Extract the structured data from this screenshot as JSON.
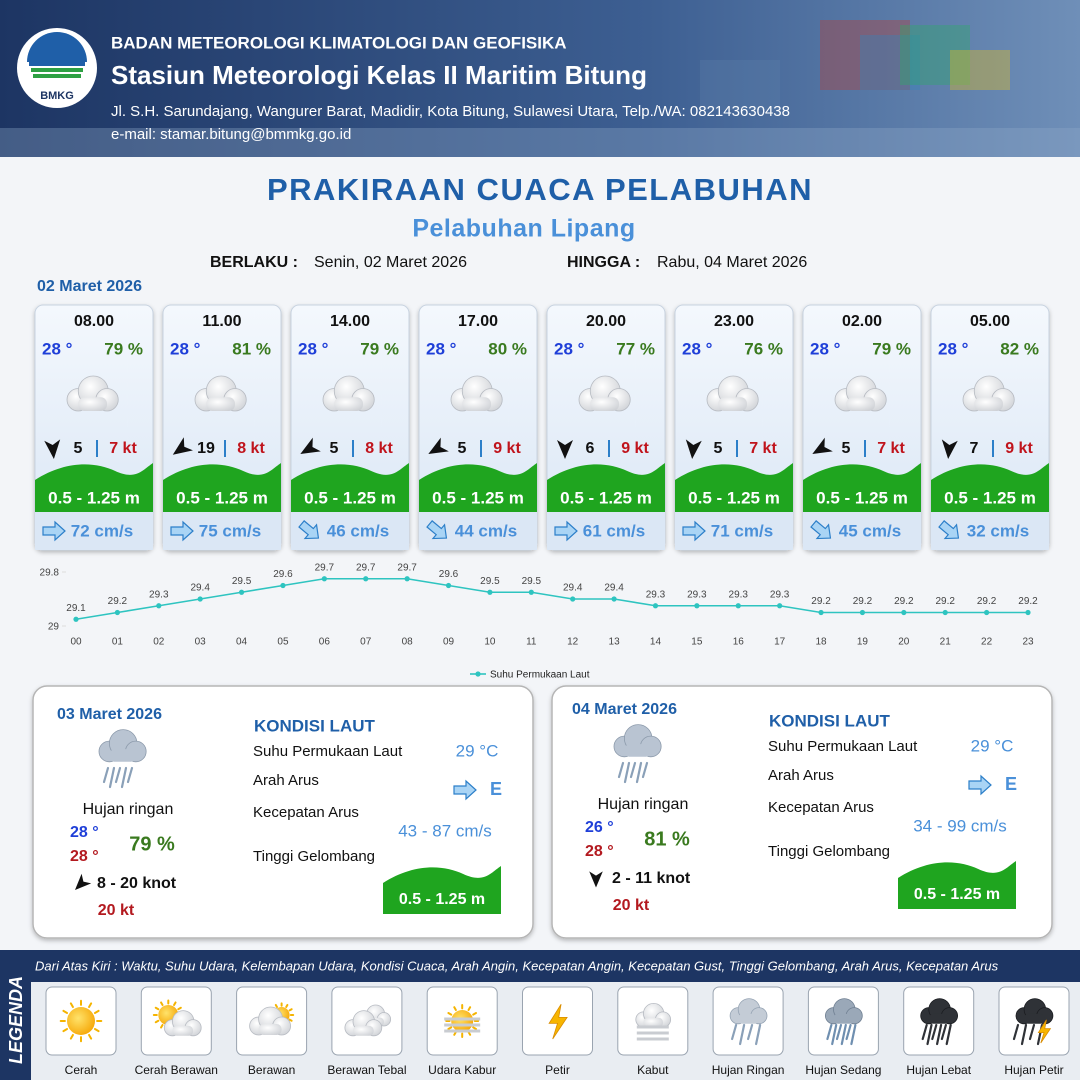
{
  "header": {
    "logo": "BMKG",
    "agency": "BADAN METEOROLOGI KLIMATOLOGI DAN GEOFISIKA",
    "station": "Stasiun Meteorologi Kelas II Maritim Bitung",
    "address": "Jl. S.H. Sarundajang, Wangurer Barat, Madidir, Kota Bitung, Sulawesi Utara, Telp./WA: 082143630438",
    "email": "e-mail: stamar.bitung@bmmkg.go.id"
  },
  "title": "PRAKIRAAN CUACA PELABUHAN",
  "subtitle": "Pelabuhan Lipang",
  "validity": {
    "from_label": "BERLAKU :",
    "from": "Senin, 02 Maret 2026",
    "until_label": "HINGGA :",
    "until": "Rabu, 04 Maret 2026"
  },
  "day1": {
    "date": "02 Maret 2026",
    "cards": [
      {
        "time": "08.00",
        "temp": "28 °",
        "humidity": "79 %",
        "wind": "5",
        "gust": "7 kt",
        "wave": "0.5 - 1.25 m",
        "current": "72 cm/s"
      },
      {
        "time": "11.00",
        "temp": "28 °",
        "humidity": "81 %",
        "wind": "19",
        "gust": "8 kt",
        "wave": "0.5 - 1.25 m",
        "current": "75 cm/s"
      },
      {
        "time": "14.00",
        "temp": "28 °",
        "humidity": "79 %",
        "wind": "5",
        "gust": "8 kt",
        "wave": "0.5 - 1.25 m",
        "current": "46 cm/s"
      },
      {
        "time": "17.00",
        "temp": "28 °",
        "humidity": "80 %",
        "wind": "5",
        "gust": "9 kt",
        "wave": "0.5 - 1.25 m",
        "current": "44 cm/s"
      },
      {
        "time": "20.00",
        "temp": "28 °",
        "humidity": "77 %",
        "wind": "6",
        "gust": "9 kt",
        "wave": "0.5 - 1.25 m",
        "current": "61 cm/s"
      },
      {
        "time": "23.00",
        "temp": "28 °",
        "humidity": "76 %",
        "wind": "5",
        "gust": "7 kt",
        "wave": "0.5 - 1.25 m",
        "current": "71 cm/s"
      },
      {
        "time": "02.00",
        "temp": "28 °",
        "humidity": "79 %",
        "wind": "5",
        "gust": "7 kt",
        "wave": "0.5 - 1.25 m",
        "current": "45 cm/s"
      },
      {
        "time": "05.00",
        "temp": "28 °",
        "humidity": "82 %",
        "wind": "7",
        "gust": "9 kt",
        "wave": "0.5 - 1.25 m",
        "current": "32 cm/s"
      }
    ]
  },
  "chart_data": {
    "type": "line",
    "categories": [
      "00",
      "01",
      "02",
      "03",
      "04",
      "05",
      "06",
      "07",
      "08",
      "09",
      "10",
      "11",
      "12",
      "13",
      "14",
      "15",
      "16",
      "17",
      "18",
      "19",
      "20",
      "21",
      "22",
      "23"
    ],
    "series": [
      {
        "name": "Suhu Permukaan Laut",
        "color": "#2ec4c0",
        "values": [
          29.1,
          29.2,
          29.3,
          29.4,
          29.5,
          29.6,
          29.7,
          29.7,
          29.7,
          29.6,
          29.5,
          29.5,
          29.4,
          29.4,
          29.3,
          29.3,
          29.3,
          29.3,
          29.2,
          29.2,
          29.2,
          29.2,
          29.2,
          29.2
        ]
      }
    ],
    "ylim": [
      29,
      29.8
    ],
    "yticks": [
      29,
      29.8
    ],
    "grid": false,
    "legend": "bottom"
  },
  "days": [
    {
      "date": "03 Maret 2026",
      "condition": "Hujan ringan",
      "temp_min": "28 °",
      "temp_max": "28 °",
      "humidity": "79 %",
      "wind": "8 - 20 knot",
      "gust": "20 kt",
      "sea": {
        "title": "KONDISI LAUT",
        "sst_label": "Suhu Permukaan Laut",
        "sst": "29 °C",
        "dir_label": "Arah Arus",
        "dir": "E",
        "speed_label": "Kecepatan Arus",
        "speed": "43 - 87 cm/s",
        "wave_label": "Tinggi Gelombang",
        "wave": "0.5 - 1.25 m"
      }
    },
    {
      "date": "04 Maret 2026",
      "condition": "Hujan ringan",
      "temp_min": "26 °",
      "temp_max": "28 °",
      "humidity": "81 %",
      "wind": "2 - 11 knot",
      "gust": "20 kt",
      "sea": {
        "title": "KONDISI LAUT",
        "sst_label": "Suhu Permukaan Laut",
        "sst": "29 °C",
        "dir_label": "Arah Arus",
        "dir": "E",
        "speed_label": "Kecepatan Arus",
        "speed": "34 - 99 cm/s",
        "wave_label": "Tinggi Gelombang",
        "wave": "0.5 - 1.25 m"
      }
    }
  ],
  "legend": {
    "label": "LEGENDA",
    "description": "Dari Atas Kiri : Waktu, Suhu Udara, Kelembapan Udara, Kondisi Cuaca, Arah Angin, Kecepatan Angin, Kecepatan Gust, Tinggi Gelombang, Arah Arus, Kecepatan Arus",
    "items": [
      "Cerah",
      "Cerah Berawan",
      "Berawan",
      "Berawan Tebal",
      "Udara Kabur",
      "Petir",
      "Kabut",
      "Hujan Ringan",
      "Hujan Sedang",
      "Hujan Lebat",
      "Hujan Petir"
    ]
  }
}
